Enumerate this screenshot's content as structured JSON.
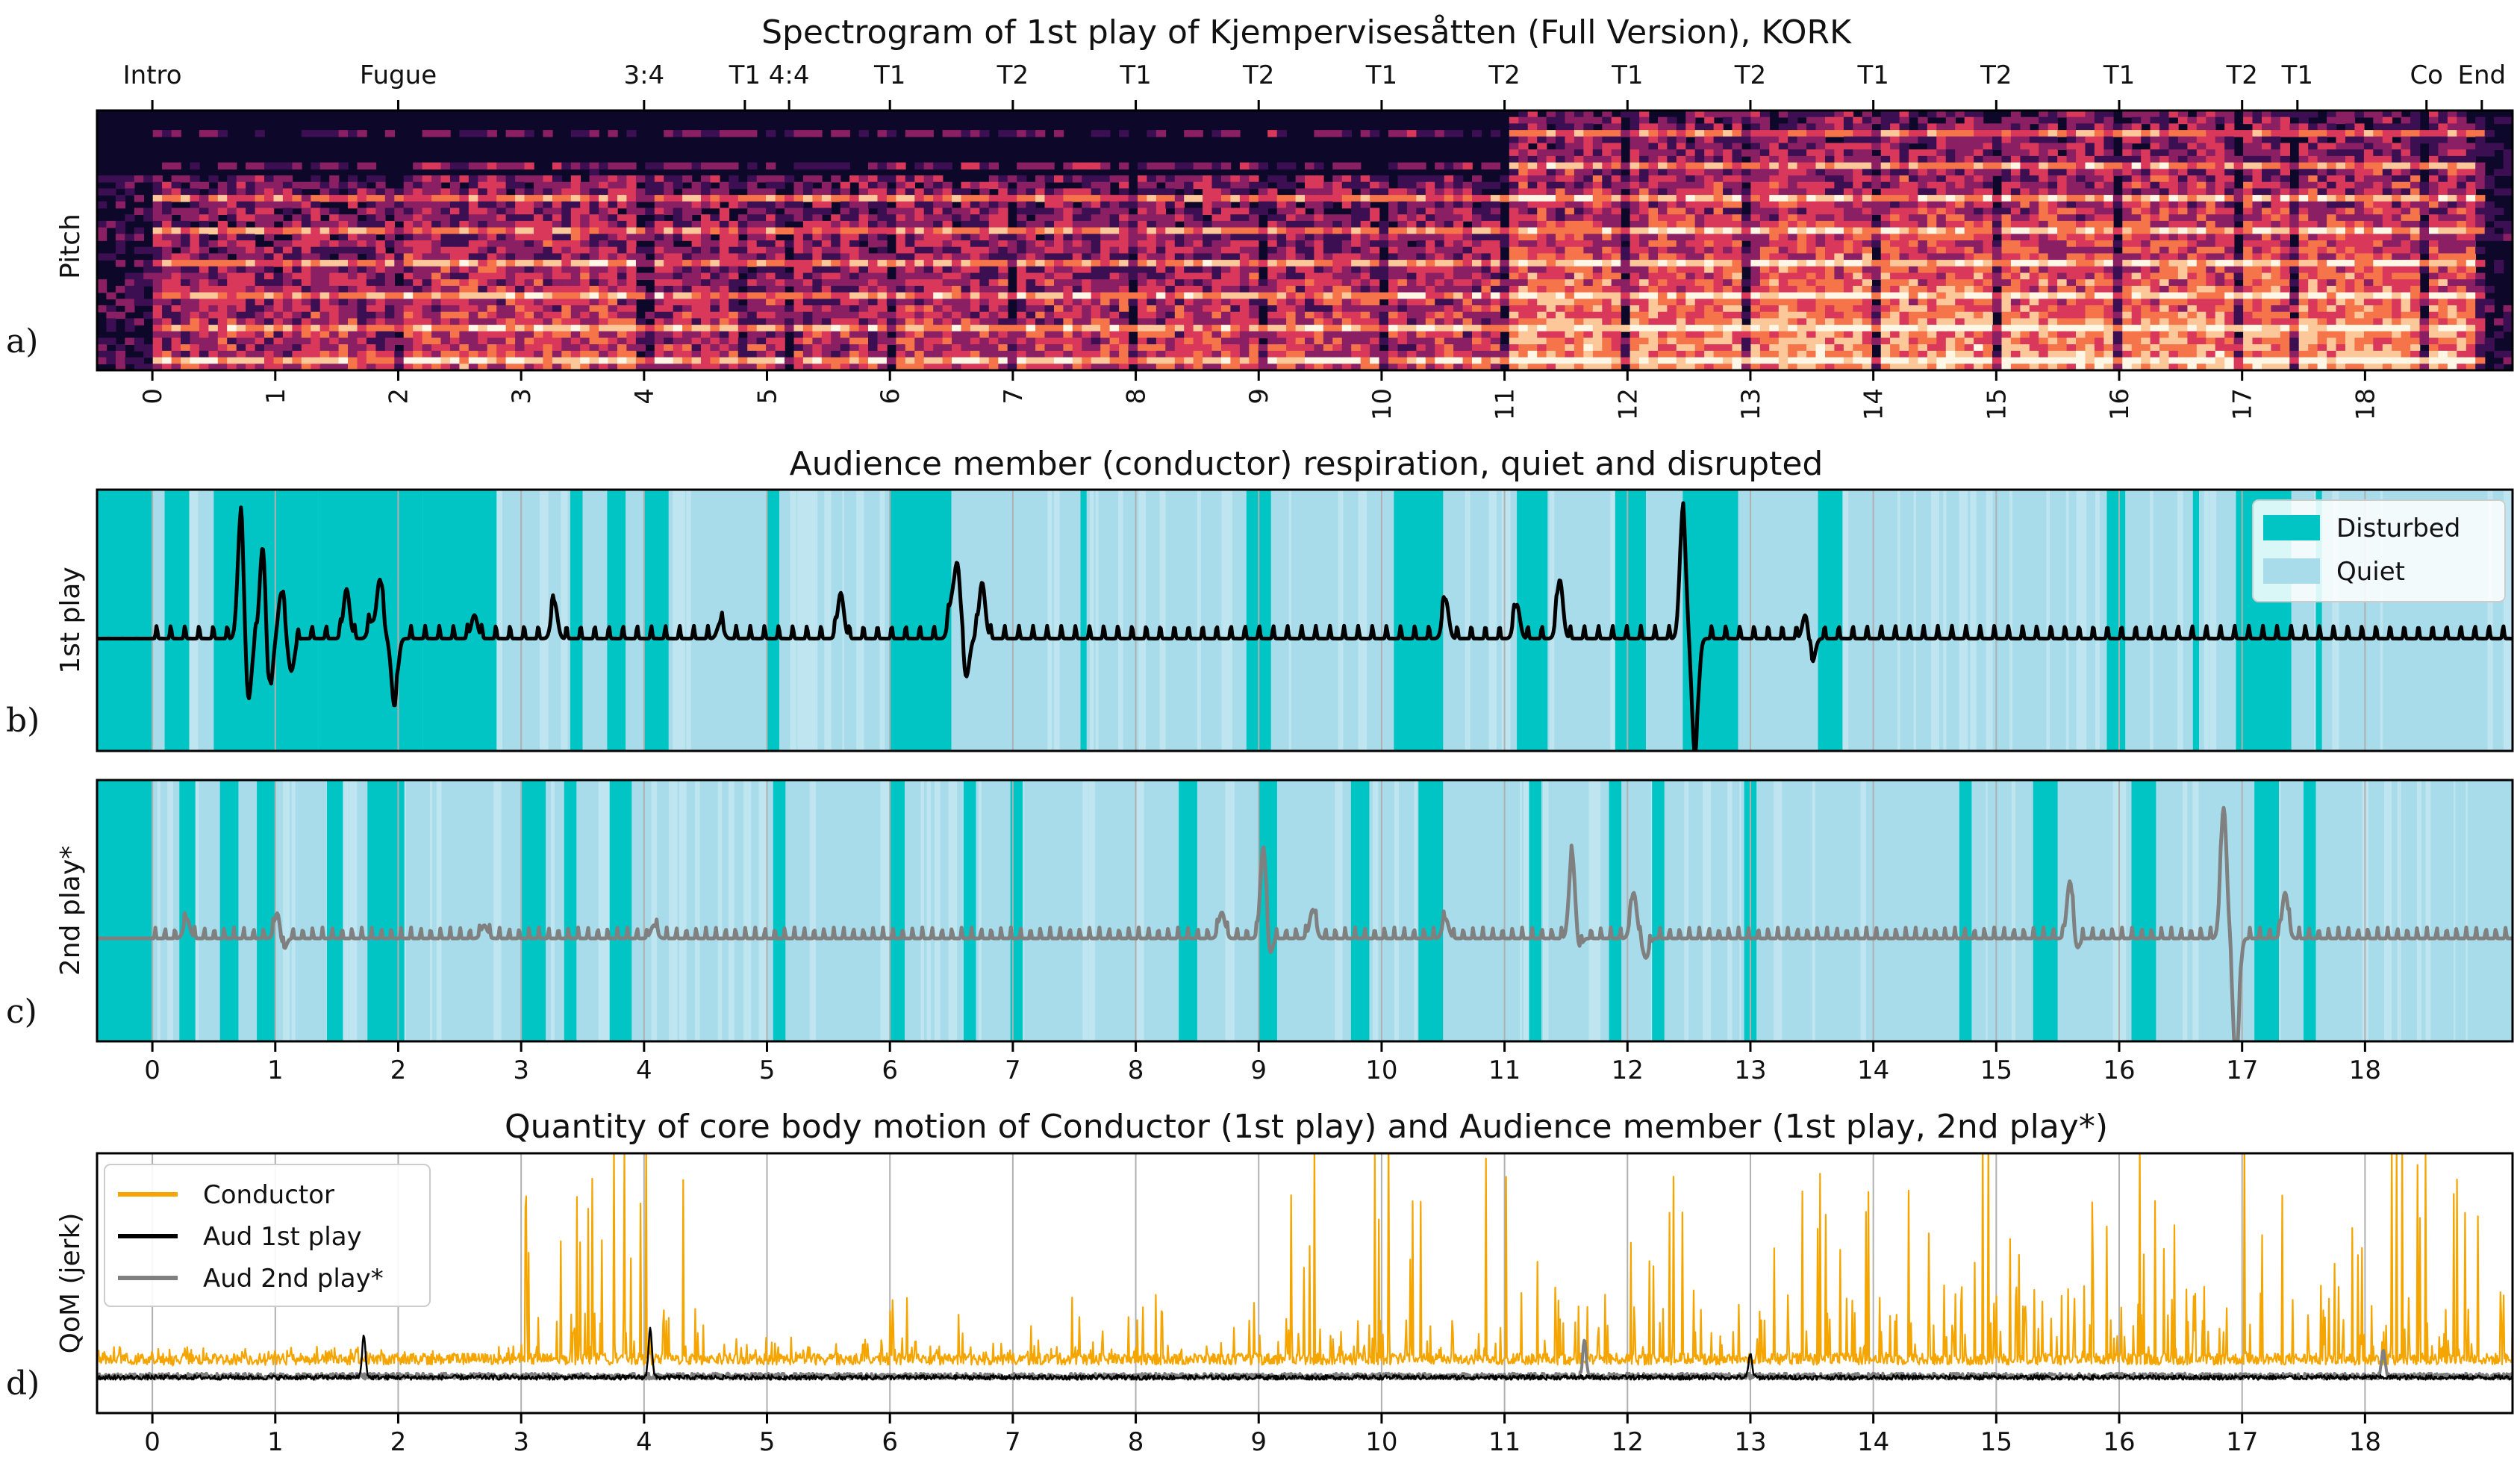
{
  "chart_data": [
    {
      "panel_label": "a)",
      "type": "heatmap",
      "title": "Spectrogram of 1st play of Kjempervisesåtten (Full Version), KORK",
      "ylabel": "Pitch",
      "xlim": [
        -0.45,
        19.2
      ],
      "x_ticks": [
        0,
        1,
        2,
        3,
        4,
        5,
        6,
        7,
        8,
        9,
        10,
        11,
        12,
        13,
        14,
        15,
        16,
        17,
        18
      ],
      "colormap": [
        "#0d0829",
        "#3b0f52",
        "#8a1f63",
        "#d9385a",
        "#f5744a",
        "#fcc89a",
        "#fff7e6"
      ],
      "section_markers": [
        {
          "label": "Intro",
          "x": 0.0
        },
        {
          "label": "Fugue",
          "x": 2.0
        },
        {
          "label": "3:4",
          "x": 4.0
        },
        {
          "label": "T1",
          "x": 4.82
        },
        {
          "label": "4:4",
          "x": 5.18
        },
        {
          "label": "T1",
          "x": 6.0
        },
        {
          "label": "T2",
          "x": 7.0
        },
        {
          "label": "T1",
          "x": 8.0
        },
        {
          "label": "T2",
          "x": 9.0
        },
        {
          "label": "T1",
          "x": 10.0
        },
        {
          "label": "T2",
          "x": 11.0
        },
        {
          "label": "T1",
          "x": 12.0
        },
        {
          "label": "T2",
          "x": 13.0
        },
        {
          "label": "T1",
          "x": 14.0
        },
        {
          "label": "T2",
          "x": 15.0
        },
        {
          "label": "T1",
          "x": 16.0
        },
        {
          "label": "T2",
          "x": 17.0
        },
        {
          "label": "T1",
          "x": 17.45
        },
        {
          "label": "Co",
          "x": 18.5
        },
        {
          "label": "End",
          "x": 18.95
        }
      ]
    },
    {
      "panel_label": "b)",
      "type": "line",
      "title": "Audience member (conductor) respiration, quiet and disrupted",
      "ylabel": "1st play",
      "xlim": [
        -0.45,
        19.2
      ],
      "ylim": [
        -1,
        1
      ],
      "line_color": "#000000",
      "band_colors": {
        "disturbed": "#00c5c5",
        "quiet": "#a8dcea"
      },
      "legend": [
        {
          "label": "Disturbed",
          "color": "#00c5c5"
        },
        {
          "label": "Quiet",
          "color": "#a8dcea"
        }
      ],
      "disturbed_intervals": [
        [
          -0.45,
          0.0
        ],
        [
          0.1,
          0.3
        ],
        [
          0.5,
          1.35
        ],
        [
          1.35,
          2.2
        ],
        [
          2.2,
          2.8
        ],
        [
          3.4,
          3.5
        ],
        [
          3.7,
          3.85
        ],
        [
          4.0,
          4.2
        ],
        [
          5.0,
          5.1
        ],
        [
          6.0,
          6.5
        ],
        [
          7.55,
          7.6
        ],
        [
          8.9,
          9.1
        ],
        [
          10.1,
          10.5
        ],
        [
          11.1,
          11.35
        ],
        [
          11.9,
          12.15
        ],
        [
          12.45,
          12.9
        ],
        [
          13.55,
          13.75
        ],
        [
          15.9,
          16.05
        ],
        [
          16.6,
          16.65
        ],
        [
          16.95,
          17.4
        ],
        [
          17.6,
          17.65
        ]
      ],
      "respiration": {
        "baseline": 0.0,
        "breath_period": 0.115,
        "breath_amplitude": 0.07,
        "spikes": [
          {
            "x": 0.72,
            "amp": 0.95
          },
          {
            "x": 0.78,
            "amp": -0.5
          },
          {
            "x": 0.9,
            "amp": 0.75
          },
          {
            "x": 0.95,
            "amp": -0.48
          },
          {
            "x": 1.05,
            "amp": 0.35
          },
          {
            "x": 1.13,
            "amp": -0.25
          },
          {
            "x": 1.58,
            "amp": 0.38
          },
          {
            "x": 1.78,
            "amp": 0.12
          },
          {
            "x": 1.85,
            "amp": 0.45
          },
          {
            "x": 1.97,
            "amp": -0.52
          },
          {
            "x": 2.62,
            "amp": 0.18
          },
          {
            "x": 3.27,
            "amp": 0.28
          },
          {
            "x": 4.62,
            "amp": 0.12
          },
          {
            "x": 5.6,
            "amp": 0.35
          },
          {
            "x": 6.5,
            "amp": 0.25
          },
          {
            "x": 6.55,
            "amp": 0.55
          },
          {
            "x": 6.62,
            "amp": -0.3
          },
          {
            "x": 6.75,
            "amp": 0.43
          },
          {
            "x": 10.52,
            "amp": 0.3
          },
          {
            "x": 11.1,
            "amp": 0.26
          },
          {
            "x": 11.45,
            "amp": 0.45
          },
          {
            "x": 12.45,
            "amp": 0.95
          },
          {
            "x": 12.55,
            "amp": -0.9
          },
          {
            "x": 13.45,
            "amp": 0.2
          },
          {
            "x": 13.5,
            "amp": -0.2
          }
        ]
      }
    },
    {
      "panel_label": "c)",
      "type": "line",
      "ylabel": "2nd play*",
      "xlim": [
        -0.45,
        19.2
      ],
      "ylim": [
        -1,
        1
      ],
      "line_color": "#808080",
      "x_ticks": [
        0,
        1,
        2,
        3,
        4,
        5,
        6,
        7,
        8,
        9,
        10,
        11,
        12,
        13,
        14,
        15,
        16,
        17,
        18
      ],
      "disturbed_intervals": [
        [
          -0.45,
          0.0
        ],
        [
          0.22,
          0.35
        ],
        [
          0.55,
          0.7
        ],
        [
          0.85,
          1.0
        ],
        [
          1.42,
          1.55
        ],
        [
          1.75,
          2.05
        ],
        [
          3.0,
          3.2
        ],
        [
          3.35,
          3.45
        ],
        [
          3.72,
          3.9
        ],
        [
          5.05,
          5.15
        ],
        [
          6.0,
          6.12
        ],
        [
          6.6,
          6.7
        ],
        [
          6.98,
          7.08
        ],
        [
          8.35,
          8.5
        ],
        [
          9.0,
          9.15
        ],
        [
          9.75,
          9.9
        ],
        [
          10.3,
          10.5
        ],
        [
          11.2,
          11.3
        ],
        [
          11.85,
          11.95
        ],
        [
          12.2,
          12.3
        ],
        [
          12.95,
          13.05
        ],
        [
          14.7,
          14.8
        ],
        [
          15.3,
          15.5
        ],
        [
          16.1,
          16.3
        ],
        [
          17.1,
          17.3
        ],
        [
          17.5,
          17.6
        ]
      ],
      "respiration": {
        "baseline": 0.0,
        "breath_period": 0.08,
        "breath_amplitude": 0.06,
        "spikes": [
          {
            "x": 0.28,
            "amp": 0.15
          },
          {
            "x": 1.02,
            "amp": 0.22
          },
          {
            "x": 1.06,
            "amp": -0.12
          },
          {
            "x": 2.7,
            "amp": 0.1
          },
          {
            "x": 4.08,
            "amp": 0.1
          },
          {
            "x": 8.7,
            "amp": 0.2
          },
          {
            "x": 9.04,
            "amp": 0.75
          },
          {
            "x": 9.08,
            "amp": -0.2
          },
          {
            "x": 9.44,
            "amp": 0.22
          },
          {
            "x": 10.52,
            "amp": 0.15
          },
          {
            "x": 11.55,
            "amp": 0.65
          },
          {
            "x": 11.6,
            "amp": -0.1
          },
          {
            "x": 12.05,
            "amp": 0.35
          },
          {
            "x": 12.15,
            "amp": -0.15
          },
          {
            "x": 15.6,
            "amp": 0.45
          },
          {
            "x": 15.65,
            "amp": -0.1
          },
          {
            "x": 16.85,
            "amp": 1.0
          },
          {
            "x": 16.95,
            "amp": -0.95
          },
          {
            "x": 17.35,
            "amp": 0.35
          }
        ]
      }
    },
    {
      "panel_label": "d)",
      "type": "line",
      "title": "Quantity of core body motion of Conductor (1st play) and Audience member (1st play, 2nd play*)",
      "ylabel": "QoM (jerk)",
      "xlim": [
        -0.45,
        19.2
      ],
      "ylim": [
        0,
        1
      ],
      "x_ticks": [
        0,
        1,
        2,
        3,
        4,
        5,
        6,
        7,
        8,
        9,
        10,
        11,
        12,
        13,
        14,
        15,
        16,
        17,
        18
      ],
      "legend": [
        {
          "label": "Conductor",
          "color": "#f5a500"
        },
        {
          "label": "Aud 1st play",
          "color": "#000000"
        },
        {
          "label": "Aud 2nd play*",
          "color": "#808080"
        }
      ],
      "series": [
        {
          "name": "Conductor",
          "color": "#f5a500",
          "baseline": 0.08,
          "noise": 0.05,
          "segments": [
            {
              "x": [
                -0.45,
                3.0
              ],
              "level": 0.08,
              "burst": 0.15
            },
            {
              "x": [
                3.0,
                4.5
              ],
              "level": 0.25,
              "burst": 1.0
            },
            {
              "x": [
                4.5,
                6.0
              ],
              "level": 0.09,
              "burst": 0.2
            },
            {
              "x": [
                6.0,
                6.1
              ],
              "level": 0.3,
              "burst": 1.0
            },
            {
              "x": [
                6.1,
                9.0
              ],
              "level": 0.1,
              "burst": 0.35
            },
            {
              "x": [
                9.0,
                11.0
              ],
              "level": 0.2,
              "burst": 1.0
            },
            {
              "x": [
                11.0,
                19.2
              ],
              "level": 0.35,
              "burst": 1.0
            }
          ]
        },
        {
          "name": "Aud 1st play",
          "color": "#000000",
          "baseline": 0.05,
          "noise": 0.02,
          "spikes": [
            {
              "x": 1.72,
              "amp": 0.18
            },
            {
              "x": 4.05,
              "amp": 0.22
            },
            {
              "x": 13.0,
              "amp": 0.1
            }
          ]
        },
        {
          "name": "Aud 2nd play*",
          "color": "#808080",
          "baseline": 0.06,
          "noise": 0.025,
          "spikes": [
            {
              "x": 11.65,
              "amp": 0.15
            },
            {
              "x": 18.15,
              "amp": 0.12
            }
          ]
        }
      ]
    }
  ]
}
